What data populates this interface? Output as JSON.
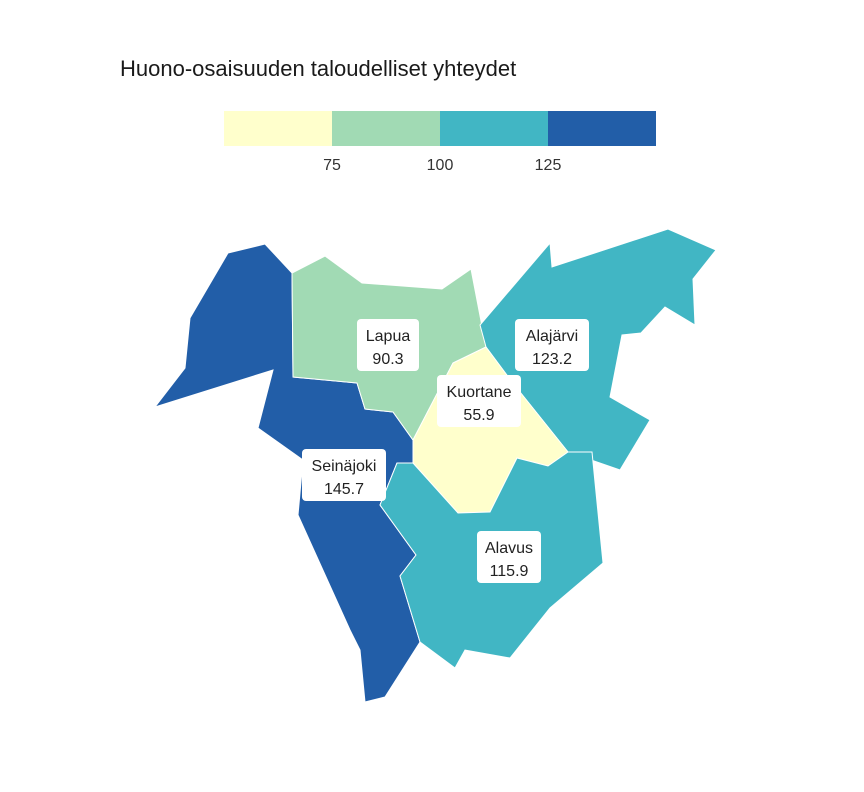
{
  "title": "Huono-osaisuuden taloudelliset yhteydet",
  "legend": {
    "ticks": [
      "75",
      "100",
      "125"
    ],
    "colors": [
      "#ffffcc",
      "#a1dab4",
      "#41b6c4",
      "#225ea8"
    ]
  },
  "municipalities": [
    {
      "name": "Lapua",
      "value": "90.3",
      "color": "#a1dab4"
    },
    {
      "name": "Alajärvi",
      "value": "123.2",
      "color": "#41b6c4"
    },
    {
      "name": "Kuortane",
      "value": "55.9",
      "color": "#ffffcc"
    },
    {
      "name": "Seinäjoki",
      "value": "145.7",
      "color": "#225ea8"
    },
    {
      "name": "Alavus",
      "value": "115.9",
      "color": "#41b6c4"
    }
  ]
}
